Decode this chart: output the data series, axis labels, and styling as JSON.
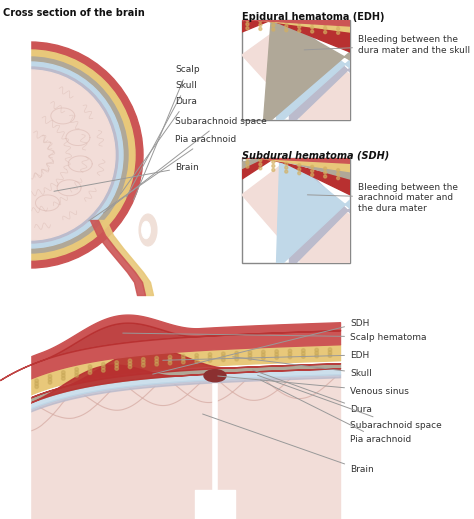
{
  "bg_color": "#ffffff",
  "label_color": "#333333",
  "line_color": "#999999",
  "sections": {
    "top_left_title": "Cross section of the brain",
    "top_right_edh_title": "Epidural hematoma (EDH)",
    "mid_right_sdh_title": "Subdural hematoma (SDH)",
    "edh_label": "Bleeding between the\ndura mater and the skull",
    "sdh_label": "Bleeding between the\narachnoid mater and\nthe dura mater",
    "left_labels": [
      "Scalp",
      "Skull",
      "Dura",
      "Subarachnoid space",
      "Pia arachnoid",
      "Brain"
    ],
    "bottom_labels": [
      "SDH",
      "Scalp hematoma",
      "EDH",
      "Skull",
      "Venous sinus",
      "Dura",
      "Subarachnoid space",
      "Pia arachnoid",
      "Brain"
    ]
  },
  "colors": {
    "scalp": "#CC5555",
    "skull": "#E8C87A",
    "dura": "#B0A898",
    "subarachnoid": "#C0D8E8",
    "pia": "#BBBBCC",
    "brain": "#F2DDD8",
    "brain_inner": "#F8EEE8",
    "blood_red": "#B83030",
    "blood_dark": "#8B1A1A",
    "venous_sinus": "#8B3030",
    "white": "#ffffff",
    "ear": "#DDCCCC",
    "face": "#F0E0D8"
  }
}
